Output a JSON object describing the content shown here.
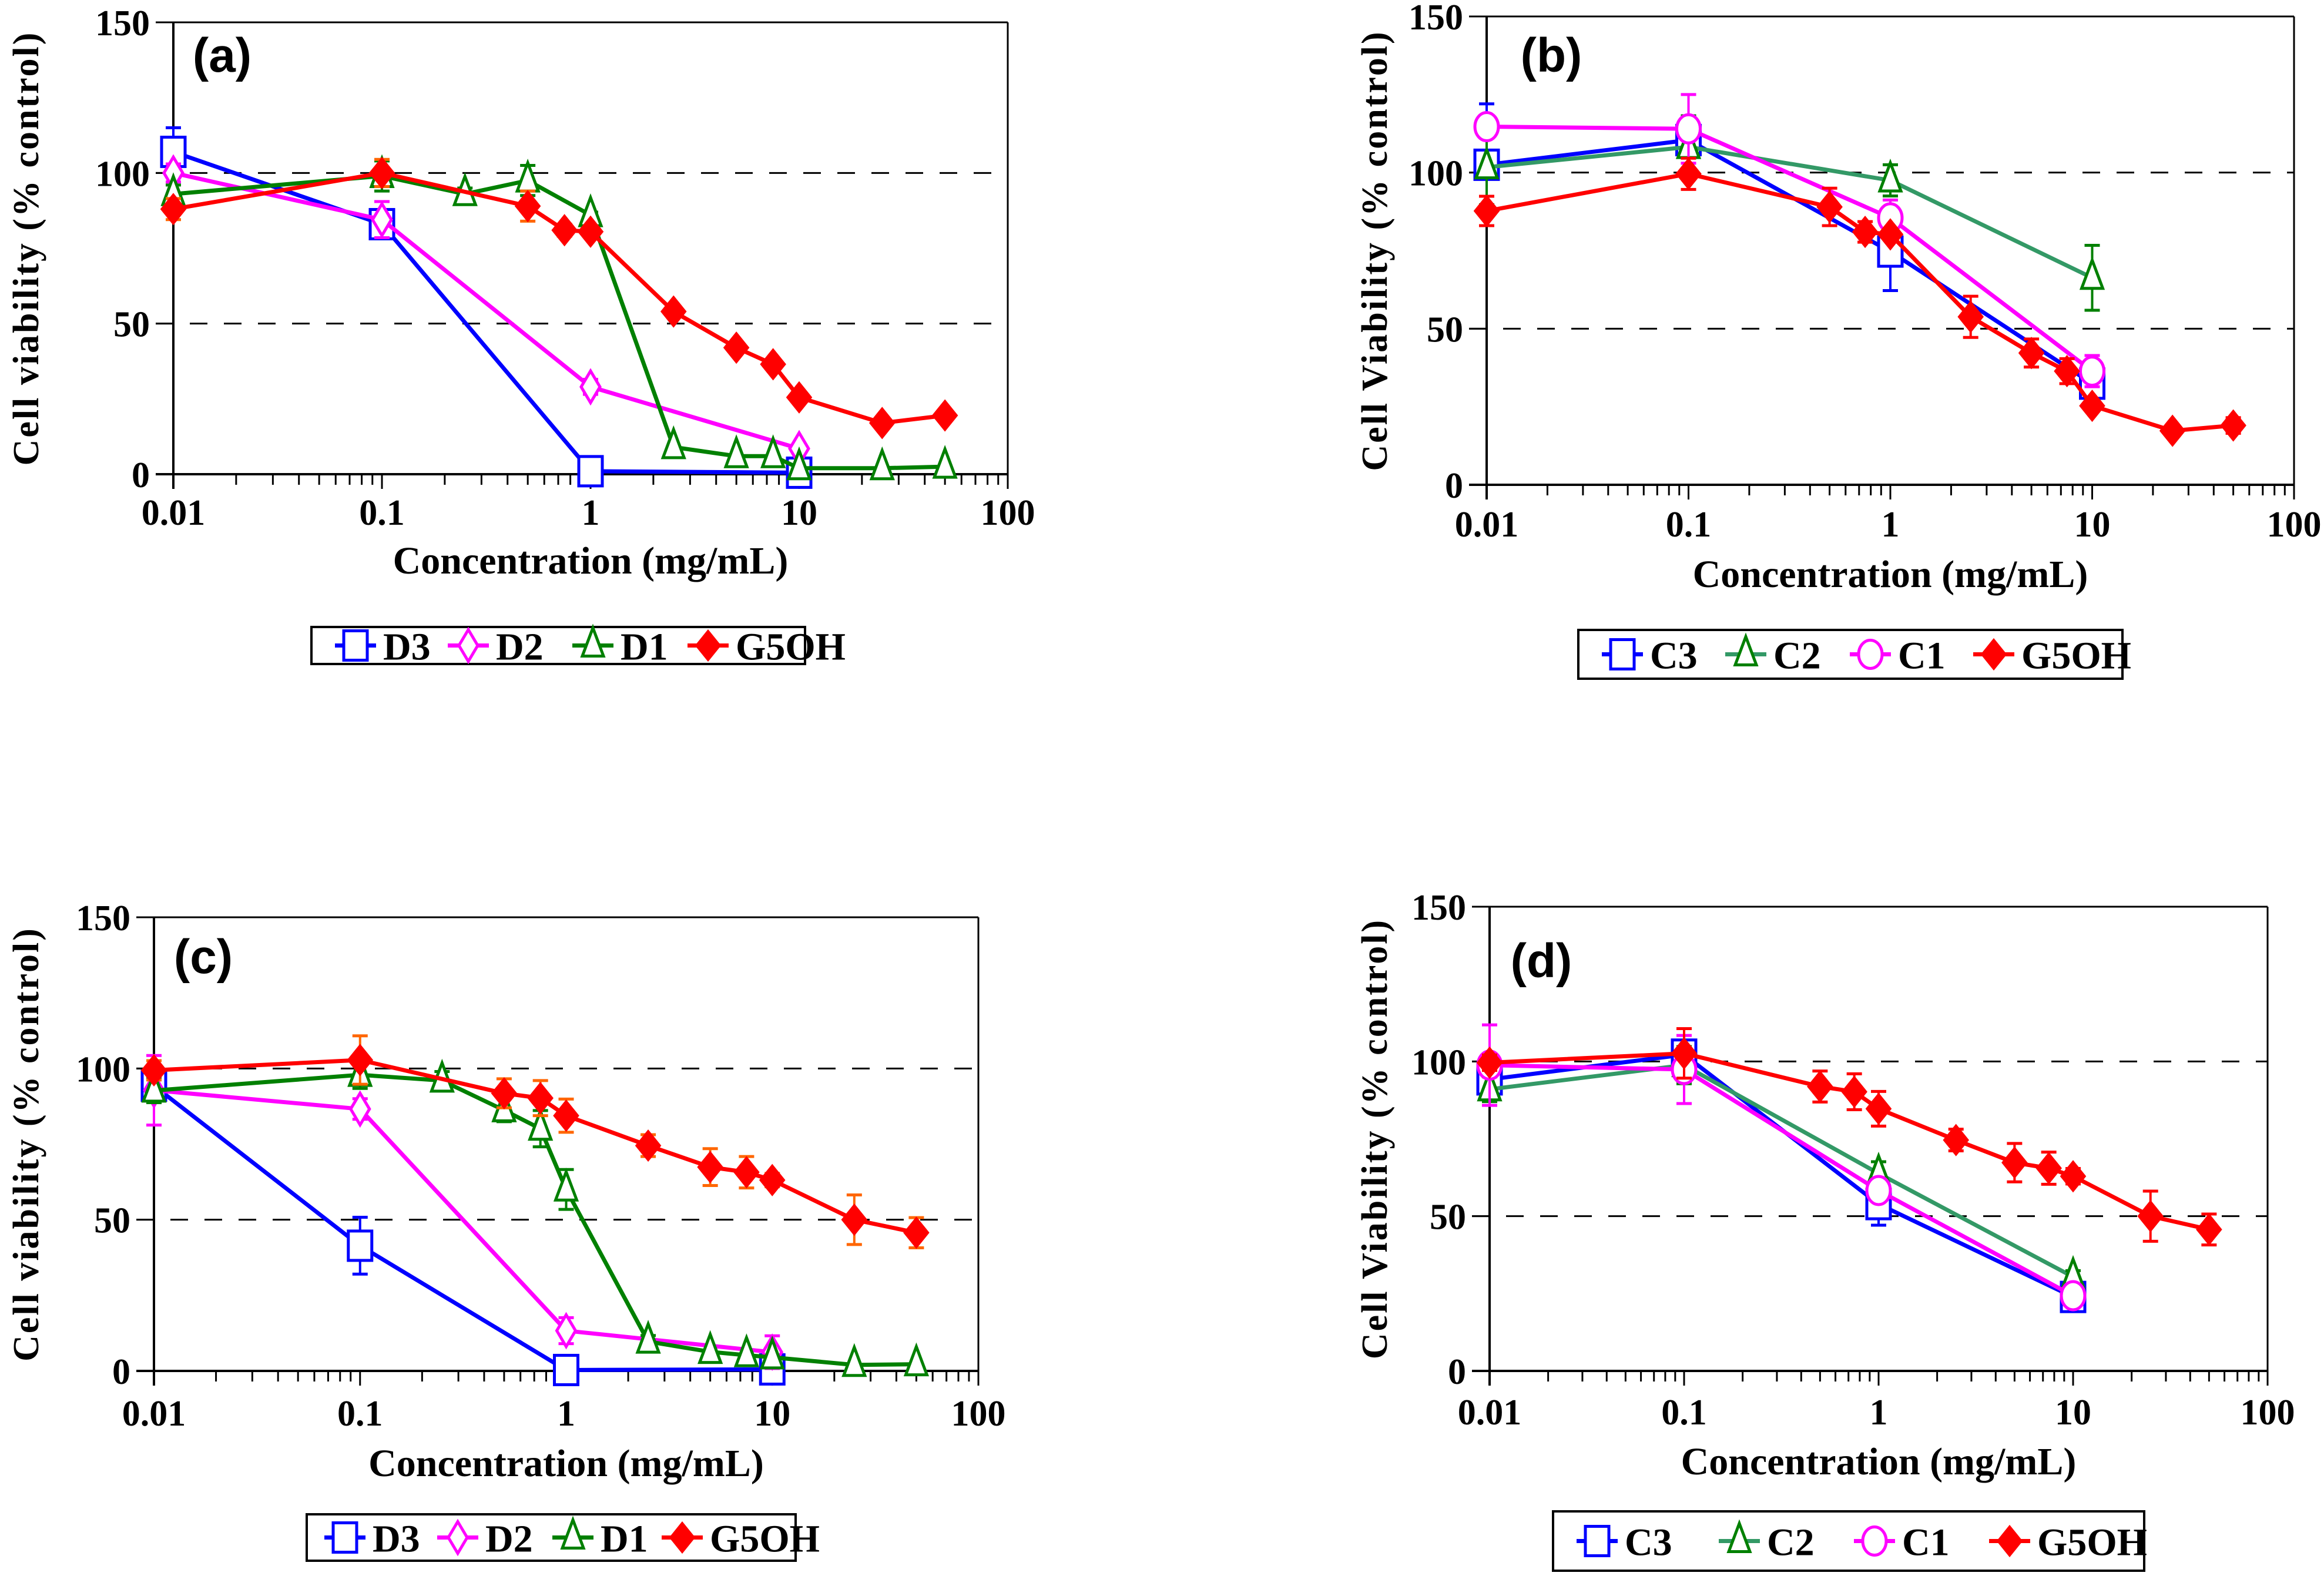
{
  "figure": {
    "description": "Cell viability vs concentration for dendrimer series, four panels"
  },
  "chart_data": [
    {
      "id": "a",
      "type": "line",
      "panel_label": "(a)",
      "title": "",
      "xlabel": "Concentration (mg/mL)",
      "ylabel": "Cell viability (% control)",
      "xscale": "log",
      "xlim": [
        0.01,
        100
      ],
      "ylim": [
        0,
        150
      ],
      "xticks": [
        0.01,
        0.1,
        1,
        10,
        100
      ],
      "xtick_labels": [
        "0.01",
        "0.1",
        "1",
        "10",
        "100"
      ],
      "yticks": [
        0,
        50,
        100,
        150
      ],
      "ytick_labels": [
        "0",
        "50",
        "100",
        "150"
      ],
      "reference_lines": [
        50,
        100
      ],
      "grid": false,
      "legend_position": "bottom",
      "series": [
        {
          "name": "D3",
          "color": "#0000FF",
          "marker": "square-open",
          "marker_color": "#0000FF",
          "err_color": "#0000FF",
          "x": [
            0.01,
            0.1,
            1,
            10
          ],
          "y": [
            107,
            83,
            1,
            0.5
          ],
          "err": [
            8,
            4,
            0,
            0
          ]
        },
        {
          "name": "D2",
          "color": "#FF00FF",
          "marker": "diamond-open",
          "marker_color": "#FF00FF",
          "err_color": "#FF00FF",
          "x": [
            0.01,
            0.1,
            1,
            10
          ],
          "y": [
            100,
            84.5,
            29,
            8.5
          ],
          "err": [
            3,
            6,
            2.5,
            0
          ]
        },
        {
          "name": "D1",
          "color": "#008000",
          "marker": "triangle-open",
          "marker_color": "#008000",
          "err_color": "#008000",
          "x": [
            0.01,
            0.1,
            0.25,
            0.5,
            1,
            2.5,
            5,
            7.5,
            10,
            25,
            50
          ],
          "y": [
            93,
            99,
            93,
            97.5,
            86,
            9,
            6,
            6,
            2,
            2,
            2.5
          ],
          "err": [
            3,
            5,
            2,
            5,
            1,
            0,
            0,
            0,
            0,
            0,
            0
          ]
        },
        {
          "name": "G5OH",
          "color": "#FF0000",
          "marker": "diamond-filled",
          "marker_color": "#FF0000",
          "err_color": "#FF6600",
          "x": [
            0.01,
            0.1,
            0.5,
            0.75,
            1,
            2.5,
            5,
            7.5,
            10,
            25,
            50
          ],
          "y": [
            88,
            100,
            89,
            81,
            80.5,
            54,
            42,
            36.5,
            25.5,
            17,
            19.5
          ],
          "err": [
            3.5,
            4.5,
            5,
            2,
            0,
            0,
            0,
            0,
            0,
            0,
            0
          ]
        }
      ]
    },
    {
      "id": "b",
      "type": "line",
      "panel_label": "(b)",
      "title": "",
      "xlabel": "Concentration (mg/mL)",
      "ylabel": "Cell Viability (% control)",
      "xscale": "log",
      "xlim": [
        0.01,
        100
      ],
      "ylim": [
        0,
        150
      ],
      "xticks": [
        0.01,
        0.1,
        1,
        10,
        100
      ],
      "xtick_labels": [
        "0.01",
        "0.1",
        "1",
        "10",
        "100"
      ],
      "yticks": [
        0,
        50,
        100,
        150
      ],
      "ytick_labels": [
        "0",
        "50",
        "100",
        "150"
      ],
      "reference_lines": [
        50,
        100
      ],
      "grid": false,
      "legend_position": "bottom",
      "series": [
        {
          "name": "C3",
          "color": "#0000FF",
          "marker": "square-open",
          "marker_color": "#0000FF",
          "err_color": "#0000FF",
          "x": [
            0.01,
            0.1,
            1,
            10
          ],
          "y": [
            102.5,
            110.4,
            74.7,
            32.4
          ],
          "err": [
            19.5,
            3,
            12.5,
            3
          ]
        },
        {
          "name": "C2",
          "color": "#339966",
          "marker": "triangle-open",
          "marker_color": "#008000",
          "err_color": "#008000",
          "x": [
            0.01,
            0.1,
            1,
            10
          ],
          "y": [
            101.7,
            108.2,
            97.5,
            66.3
          ],
          "err": [
            12,
            10,
            5,
            10.4
          ]
        },
        {
          "name": "C1",
          "color": "#FF00FF",
          "marker": "circle-open",
          "marker_color": "#FF00FF",
          "err_color": "#FF00FF",
          "x": [
            0.01,
            0.1,
            1,
            10
          ],
          "y": [
            114.7,
            114,
            85.5,
            36.4
          ],
          "err": [
            0,
            11,
            5.7,
            5
          ]
        },
        {
          "name": "G5OH",
          "color": "#FF0000",
          "marker": "diamond-filled",
          "marker_color": "#FF0000",
          "err_color": "#FF0000",
          "x": [
            0.01,
            0.1,
            0.5,
            0.75,
            1,
            2.5,
            5,
            7.5,
            10,
            25,
            50
          ],
          "y": [
            87.7,
            99.6,
            89,
            81,
            80.2,
            53.8,
            42.2,
            36.4,
            25.3,
            17.3,
            19
          ],
          "err": [
            4.7,
            5,
            6,
            3.3,
            0,
            6.6,
            4.5,
            4,
            0,
            1,
            2.5
          ]
        }
      ]
    },
    {
      "id": "c",
      "type": "line",
      "panel_label": "(c)",
      "title": "",
      "xlabel": "Concentration (mg/mL)",
      "ylabel": "Cell viability (% control)",
      "xscale": "log",
      "xlim": [
        0.01,
        100
      ],
      "ylim": [
        0,
        150
      ],
      "xticks": [
        0.01,
        0.1,
        1,
        10,
        100
      ],
      "xtick_labels": [
        "0.01",
        "0.1",
        "1",
        "10",
        "100"
      ],
      "yticks": [
        0,
        50,
        100,
        150
      ],
      "ytick_labels": [
        "0",
        "50",
        "100",
        "150"
      ],
      "reference_lines": [
        50,
        100
      ],
      "grid": false,
      "legend_position": "bottom",
      "series": [
        {
          "name": "D3",
          "color": "#0000FF",
          "marker": "square-open",
          "marker_color": "#0000FF",
          "err_color": "#0000FF",
          "x": [
            0.01,
            0.1,
            1,
            10
          ],
          "y": [
            94.3,
            41.4,
            0.3,
            0.5
          ],
          "err": [
            4,
            9.4,
            0,
            0
          ]
        },
        {
          "name": "D2",
          "color": "#FF00FF",
          "marker": "diamond-open",
          "marker_color": "#FF00FF",
          "err_color": "#FF00FF",
          "x": [
            0.01,
            0.1,
            1,
            10
          ],
          "y": [
            92.8,
            86.6,
            13.3,
            6.2
          ],
          "err": [
            11.5,
            3.4,
            4.3,
            5.4
          ]
        },
        {
          "name": "D1",
          "color": "#008000",
          "marker": "triangle-open",
          "marker_color": "#008000",
          "err_color": "#008000",
          "x": [
            0.01,
            0.1,
            0.25,
            0.5,
            0.75,
            1,
            2.5,
            5,
            7.5,
            10,
            25,
            50
          ],
          "y": [
            92.7,
            97.9,
            96,
            86.2,
            80.1,
            60,
            9.7,
            6.3,
            5.2,
            4.5,
            2,
            2.2
          ],
          "err": [
            4,
            4.5,
            3,
            3.8,
            6,
            6.6,
            2,
            0,
            0,
            0,
            0,
            0
          ]
        },
        {
          "name": "G5OH",
          "color": "#FF0000",
          "marker": "diamond-filled",
          "marker_color": "#FF0000",
          "err_color": "#FF6600",
          "x": [
            0.01,
            0.1,
            0.5,
            0.75,
            1,
            2.5,
            5,
            7.5,
            10,
            25,
            50
          ],
          "y": [
            99.4,
            102.8,
            91.8,
            90.2,
            84.4,
            74.5,
            67.4,
            65.7,
            63.1,
            50,
            45.7
          ],
          "err": [
            3.2,
            8,
            4.8,
            5.8,
            5.5,
            3.6,
            6.1,
            5.2,
            2.2,
            8.2,
            5
          ]
        }
      ]
    },
    {
      "id": "d",
      "type": "line",
      "panel_label": "(d)",
      "title": "",
      "xlabel": "Concentration (mg/mL)",
      "ylabel": "Cell Viability (% control)",
      "xscale": "log",
      "xlim": [
        0.01,
        100
      ],
      "ylim": [
        0,
        150
      ],
      "xticks": [
        0.01,
        0.1,
        1,
        10,
        100
      ],
      "xtick_labels": [
        "0.01",
        "0.1",
        "1",
        "10",
        "100"
      ],
      "yticks": [
        0,
        50,
        100,
        150
      ],
      "ytick_labels": [
        "0",
        "50",
        "100",
        "150"
      ],
      "reference_lines": [
        50,
        100
      ],
      "grid": false,
      "legend_position": "bottom",
      "series": [
        {
          "name": "C3",
          "color": "#0000FF",
          "marker": "square-open",
          "marker_color": "#0000FF",
          "err_color": "#0000FF",
          "x": [
            0.01,
            0.1,
            1,
            10
          ],
          "y": [
            94.2,
            102.2,
            53.9,
            23.9
          ],
          "err": [
            3,
            3,
            6.8,
            1
          ]
        },
        {
          "name": "C2",
          "color": "#339966",
          "marker": "triangle-open",
          "marker_color": "#008000",
          "err_color": "#008000",
          "x": [
            0.01,
            0.1,
            1,
            10
          ],
          "y": [
            91,
            98.8,
            63.8,
            30.4
          ],
          "err": [
            4,
            6,
            3.8,
            2
          ]
        },
        {
          "name": "C1",
          "color": "#FF00FF",
          "marker": "circle-open",
          "marker_color": "#FF00FF",
          "err_color": "#FF00FF",
          "x": [
            0.01,
            0.1,
            1,
            10
          ],
          "y": [
            98.8,
            97.4,
            58.3,
            24.3
          ],
          "err": [
            13,
            11,
            3,
            1
          ]
        },
        {
          "name": "G5OH",
          "color": "#FF0000",
          "marker": "diamond-filled",
          "marker_color": "#FF0000",
          "err_color": "#FF0000",
          "x": [
            0.01,
            0.1,
            0.5,
            0.75,
            1,
            2.5,
            5,
            7.5,
            10,
            25,
            50
          ],
          "y": [
            99.6,
            102.6,
            91.9,
            90.2,
            84.7,
            74.6,
            67.3,
            65.5,
            62.9,
            50,
            45.7
          ],
          "err": [
            2.5,
            8,
            5,
            5.8,
            5.6,
            3.5,
            6.2,
            5.2,
            2.5,
            8.1,
            5
          ]
        }
      ]
    }
  ]
}
